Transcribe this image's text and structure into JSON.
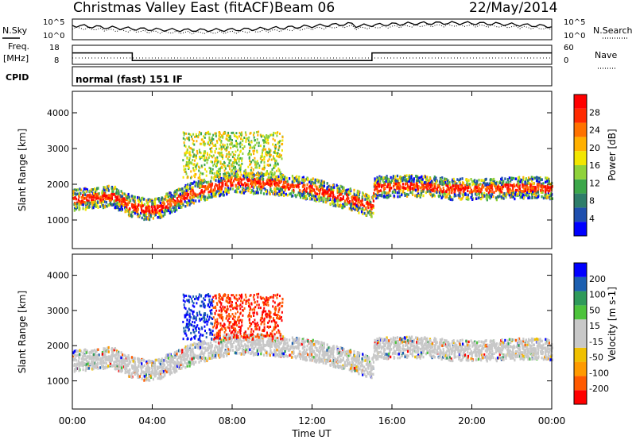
{
  "header": {
    "title": "Christmas Valley East (fitACF)",
    "beam": "Beam 06",
    "date": "22/May/2014"
  },
  "noise_panel": {
    "left_label": "N.Sky",
    "right_label": "N.Search",
    "right_ticks": [
      "10^5",
      "10^0"
    ],
    "left_ticks": [
      "10^5",
      "10^0"
    ]
  },
  "freq_panel": {
    "left_label_1": "Freq.",
    "left_label_2": "[MHz]",
    "left_ticks": [
      "18",
      "8"
    ],
    "right_label": "Nave",
    "right_ticks": [
      "60",
      "0"
    ]
  },
  "cpid": {
    "label": "CPID",
    "text": "normal (fast) 151 IF"
  },
  "colors": {
    "power_scale": [
      "#0000ff",
      "#1f4fae",
      "#2e7d6a",
      "#3ca74a",
      "#8fd23a",
      "#f2e600",
      "#ffb000",
      "#ff7200",
      "#ff2a00",
      "#ff0000"
    ],
    "velocity_scale": [
      "#ff0000",
      "#ff5a00",
      "#ff9a00",
      "#f0c000",
      "#c8c8c8",
      "#c8c8c8",
      "#4dc33c",
      "#2f9a5a",
      "#1c5fb0",
      "#0000ff"
    ]
  },
  "chart_data": [
    {
      "type": "heatmap",
      "name": "power",
      "xlabel": "",
      "ylabel": "Slant Range [km]",
      "ylim": [
        200,
        4600
      ],
      "yticks": [
        "1000",
        "2000",
        "3000",
        "4000"
      ],
      "xlim": [
        0,
        24
      ],
      "colorbar": {
        "label": "Power [dB]",
        "ticks": [
          "4",
          "8",
          "12",
          "16",
          "20",
          "24",
          "28"
        ],
        "range": [
          0,
          30
        ]
      },
      "bands": [
        {
          "x": [
            0,
            2,
            3,
            4,
            6,
            8,
            10,
            12,
            14,
            15,
            15.1,
            17,
            19,
            21,
            23,
            24
          ],
          "y": [
            1600,
            1700,
            1400,
            1300,
            1800,
            2100,
            2050,
            1900,
            1600,
            1400,
            1950,
            2000,
            1900,
            1900,
            1950,
            1900
          ],
          "value": 26,
          "width": 220
        }
      ]
    },
    {
      "type": "heatmap",
      "name": "velocity",
      "xlabel": "Time UT",
      "ylabel": "Slant Range [km]",
      "ylim": [
        200,
        4600
      ],
      "yticks": [
        "1000",
        "2000",
        "3000",
        "4000"
      ],
      "xlim": [
        0,
        24
      ],
      "xticks": [
        "00:00",
        "04:00",
        "08:00",
        "12:00",
        "16:00",
        "20:00",
        "00:00"
      ],
      "colorbar": {
        "label": "Velocity [m s-1]",
        "ticks": [
          "200",
          "100",
          "50",
          "15",
          "-15",
          "-50",
          "-100",
          "-200"
        ],
        "range": [
          -250,
          250
        ]
      }
    }
  ]
}
